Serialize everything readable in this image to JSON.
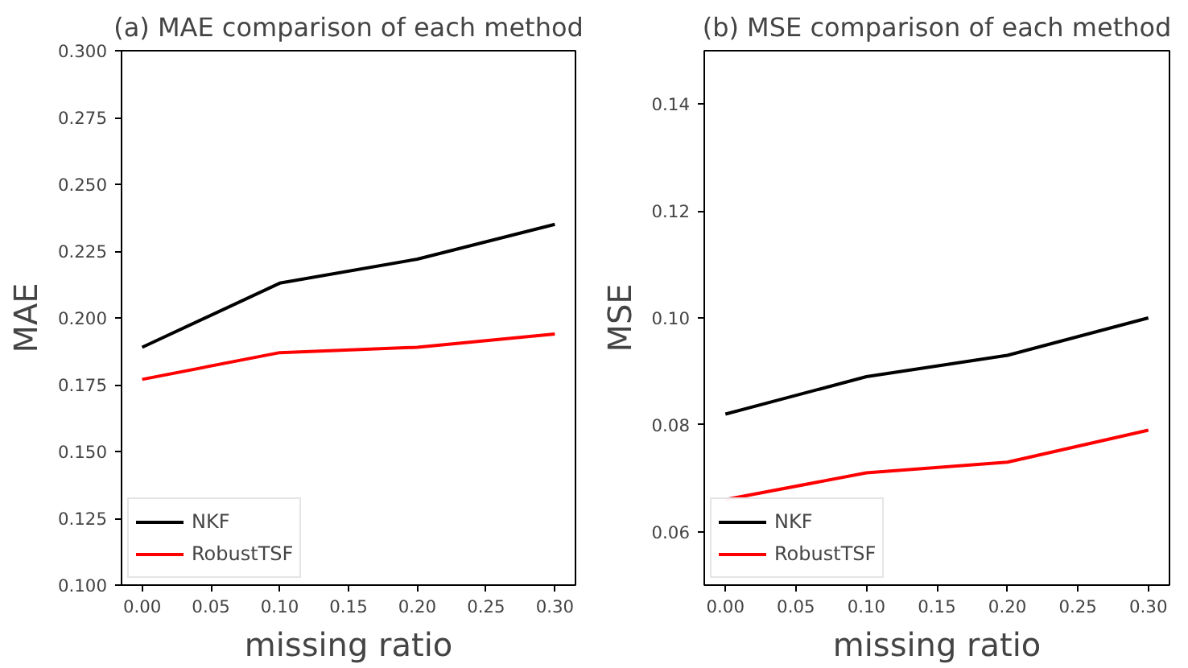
{
  "chart_data": [
    {
      "type": "line",
      "title": "(a) MAE comparison of each method",
      "xlabel": "missing ratio",
      "ylabel": "MAE",
      "x": [
        0.0,
        0.1,
        0.2,
        0.3
      ],
      "series": [
        {
          "name": "NKF",
          "color": "#000000",
          "values": [
            0.189,
            0.213,
            0.222,
            0.235
          ]
        },
        {
          "name": "RobustTSF",
          "color": "#ff0000",
          "values": [
            0.177,
            0.187,
            0.189,
            0.194
          ]
        }
      ],
      "xlim": [
        -0.015,
        0.315
      ],
      "xticks": [
        {
          "value": 0,
          "label": "0.00"
        },
        0.05,
        {
          "value": 0.1,
          "label": "0.10"
        },
        0.15,
        {
          "value": 0.2,
          "label": "0.20"
        },
        0.25,
        {
          "value": 0.3,
          "label": "0.30"
        }
      ],
      "ylim": [
        0.1,
        0.3
      ],
      "yticks": [
        {
          "value": 0.1,
          "label": "0.100"
        },
        0.125,
        {
          "value": 0.15,
          "label": "0.150"
        },
        0.175,
        {
          "value": 0.2,
          "label": "0.200"
        },
        0.225,
        {
          "value": 0.25,
          "label": "0.250"
        },
        0.275,
        {
          "value": 0.3,
          "label": "0.300"
        }
      ],
      "legend": "bottom left",
      "grid": false
    },
    {
      "type": "line",
      "title": "(b) MSE comparison of each method",
      "xlabel": "missing ratio",
      "ylabel": "MSE",
      "x": [
        0.0,
        0.1,
        0.2,
        0.3
      ],
      "series": [
        {
          "name": "NKF",
          "color": "#000000",
          "values": [
            0.082,
            0.089,
            0.093,
            0.1
          ]
        },
        {
          "name": "RobustTSF",
          "color": "#ff0000",
          "values": [
            0.066,
            0.071,
            0.073,
            0.079
          ]
        }
      ],
      "xlim": [
        -0.015,
        0.315
      ],
      "xticks": [
        {
          "value": 0,
          "label": "0.00"
        },
        0.05,
        {
          "value": 0.1,
          "label": "0.10"
        },
        0.15,
        {
          "value": 0.2,
          "label": "0.20"
        },
        0.25,
        {
          "value": 0.3,
          "label": "0.30"
        }
      ],
      "ylim": [
        0.05,
        0.15
      ],
      "yticks": [
        0.06,
        0.08,
        {
          "value": 0.1,
          "label": "0.10"
        },
        0.12,
        0.14
      ],
      "legend": "bottom left",
      "grid": false
    }
  ]
}
